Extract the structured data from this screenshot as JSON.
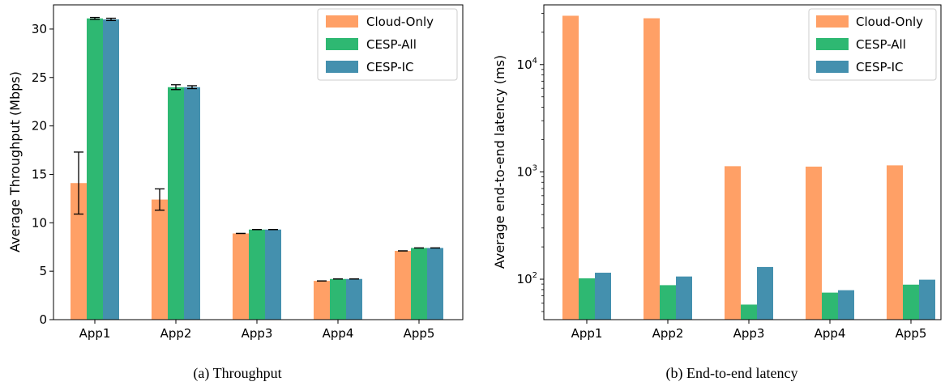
{
  "chart_data": [
    {
      "type": "bar",
      "caption": "(a) Throughput",
      "ylabel": "Average Throughput (Mbps)",
      "xlabel": "",
      "categories": [
        "App1",
        "App2",
        "App3",
        "App4",
        "App5"
      ],
      "ylim": [
        0,
        32.5
      ],
      "yticks": [
        0,
        5,
        10,
        15,
        20,
        25,
        30
      ],
      "yscale": "linear",
      "grid": false,
      "legend": "top-right",
      "series": [
        {
          "name": "Cloud-Only",
          "color": "#FFA066",
          "values": [
            14.1,
            12.4,
            8.9,
            4.0,
            7.1
          ],
          "err": [
            3.2,
            1.1,
            0,
            0,
            0
          ]
        },
        {
          "name": "CESP-All",
          "color": "#2EB872",
          "values": [
            31.1,
            24.0,
            9.3,
            4.2,
            7.4
          ],
          "err": [
            0.1,
            0.25,
            0,
            0,
            0
          ]
        },
        {
          "name": "CESP-IC",
          "color": "#4490AE",
          "values": [
            31.0,
            24.0,
            9.3,
            4.2,
            7.4
          ],
          "err": [
            0.12,
            0.15,
            0,
            0,
            0
          ]
        }
      ]
    },
    {
      "type": "bar",
      "caption": "(b) End-to-end latency",
      "ylabel": "Average end-to-end latency (ms)",
      "xlabel": "",
      "categories": [
        "App1",
        "App2",
        "App3",
        "App4",
        "App5"
      ],
      "ylim": [
        42,
        36000
      ],
      "yticks": [
        100,
        1000,
        10000
      ],
      "ytick_labels": [
        {
          "base": "10",
          "exp": "2"
        },
        {
          "base": "10",
          "exp": "3"
        },
        {
          "base": "10",
          "exp": "4"
        }
      ],
      "yscale": "log",
      "grid": false,
      "legend": "top-right",
      "series": [
        {
          "name": "Cloud-Only",
          "color": "#FFA066",
          "values": [
            28500,
            27000,
            1130,
            1120,
            1150
          ]
        },
        {
          "name": "CESP-All",
          "color": "#2EB872",
          "values": [
            102,
            88,
            58,
            75,
            89
          ]
        },
        {
          "name": "CESP-IC",
          "color": "#4490AE",
          "values": [
            115,
            106,
            130,
            79,
            99
          ]
        }
      ]
    }
  ]
}
